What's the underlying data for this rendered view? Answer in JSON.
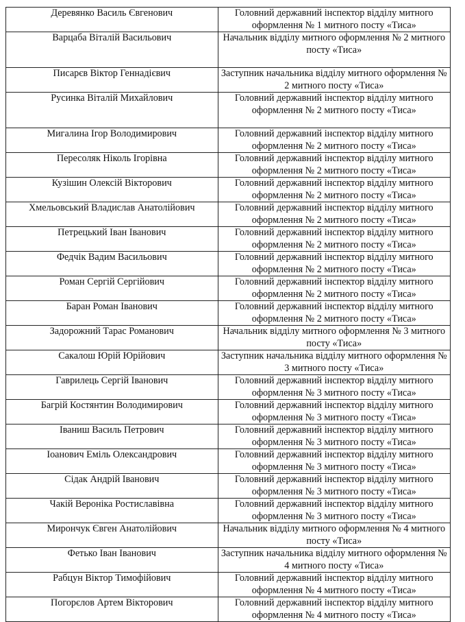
{
  "rows": [
    {
      "name": "Деревянко Василь Євгенович",
      "position": "Головний державний інспектор відділу митного оформлення № 1 митного посту «Тиса»"
    },
    {
      "name": "Варцаба Віталій Васильович",
      "position": "Начальник відділу митного оформлення № 2 митного посту «Тиса»"
    },
    {
      "name": "Писарєв Віктор Геннадієвич",
      "position": "Заступник начальника відділу митного оформлення № 2 митного посту «Тиса»"
    },
    {
      "name": "Русинка Віталій Михайлович",
      "position": "Головний державний інспектор відділу митного оформлення № 2 митного посту «Тиса»"
    },
    {
      "name": "Мигалина Ігор Володимирович",
      "position": "Головний державний інспектор відділу митного оформлення № 2 митного посту «Тиса»"
    },
    {
      "name": "Пересоляк Ніколь Ігорівна",
      "position": "Головний державний інспектор відділу митного оформлення № 2 митного посту «Тиса»"
    },
    {
      "name": "Кузішин Олексій Вікторович",
      "position": "Головний державний інспектор відділу митного оформлення № 2 митного посту «Тиса»"
    },
    {
      "name": "Хмельовський Владислав Анатолійович",
      "position": "Головний державний інспектор відділу митного оформлення № 2 митного посту «Тиса»"
    },
    {
      "name": "Петрецький Іван Іванович",
      "position": "Головний державний інспектор відділу митного оформлення № 2 митного посту «Тиса»"
    },
    {
      "name": "Федчік Вадим Васильович",
      "position": "Головний державний інспектор відділу митного оформлення № 2 митного посту «Тиса»"
    },
    {
      "name": "Роман Сергій Сергійович",
      "position": "Головний державний інспектор відділу митного оформлення № 2 митного посту «Тиса»"
    },
    {
      "name": "Баран Роман Іванович",
      "position": "Головний державний інспектор відділу митного оформлення № 2 митного посту «Тиса»"
    },
    {
      "name": "Задорожний Тарас Романович",
      "position": "Начальник відділу митного оформлення № 3 митного посту «Тиса»"
    },
    {
      "name": "Сакалош Юрій Юрійович",
      "position": "Заступник начальника відділу митного оформлення № 3 митного посту «Тиса»"
    },
    {
      "name": "Гаврилець Сергій Іванович",
      "position": "Головний державний інспектор відділу митного оформлення № 3 митного посту «Тиса»"
    },
    {
      "name": "Багрій Костянтин Володимирович",
      "position": "Головний державний інспектор відділу митного оформлення № 3 митного посту «Тиса»"
    },
    {
      "name": "Іваниш Василь Петрович",
      "position": "Головний державний інспектор відділу митного оформлення № 3 митного посту «Тиса»"
    },
    {
      "name": "Іоанович Еміль Олександрович",
      "position": "Головний державний інспектор відділу митного оформлення № 3 митного посту «Тиса»"
    },
    {
      "name": "Сідак Андрій Іванович",
      "position": "Головний державний інспектор відділу митного оформлення № 3 митного посту «Тиса»"
    },
    {
      "name": "Чакій Вероніка Ростиславівна",
      "position": "Головний державний інспектор відділу митного оформлення № 3 митного посту «Тиса»"
    },
    {
      "name": "Мирончук Євген Анатолійович",
      "position": "Начальник відділу митного оформлення № 4 митного посту «Тиса»"
    },
    {
      "name": "Фетько Іван Іванович",
      "position": "Заступник начальника відділу митного оформлення № 4 митного посту «Тиса»"
    },
    {
      "name": "Рабцун Віктор Тимофійович",
      "position": "Головний державний інспектор відділу митного оформлення № 4 митного посту «Тиса»"
    },
    {
      "name": "Погорєлов Артем Вікторович",
      "position": "Головний державний інспектор відділу митного оформлення № 4 митного посту «Тиса»"
    }
  ]
}
